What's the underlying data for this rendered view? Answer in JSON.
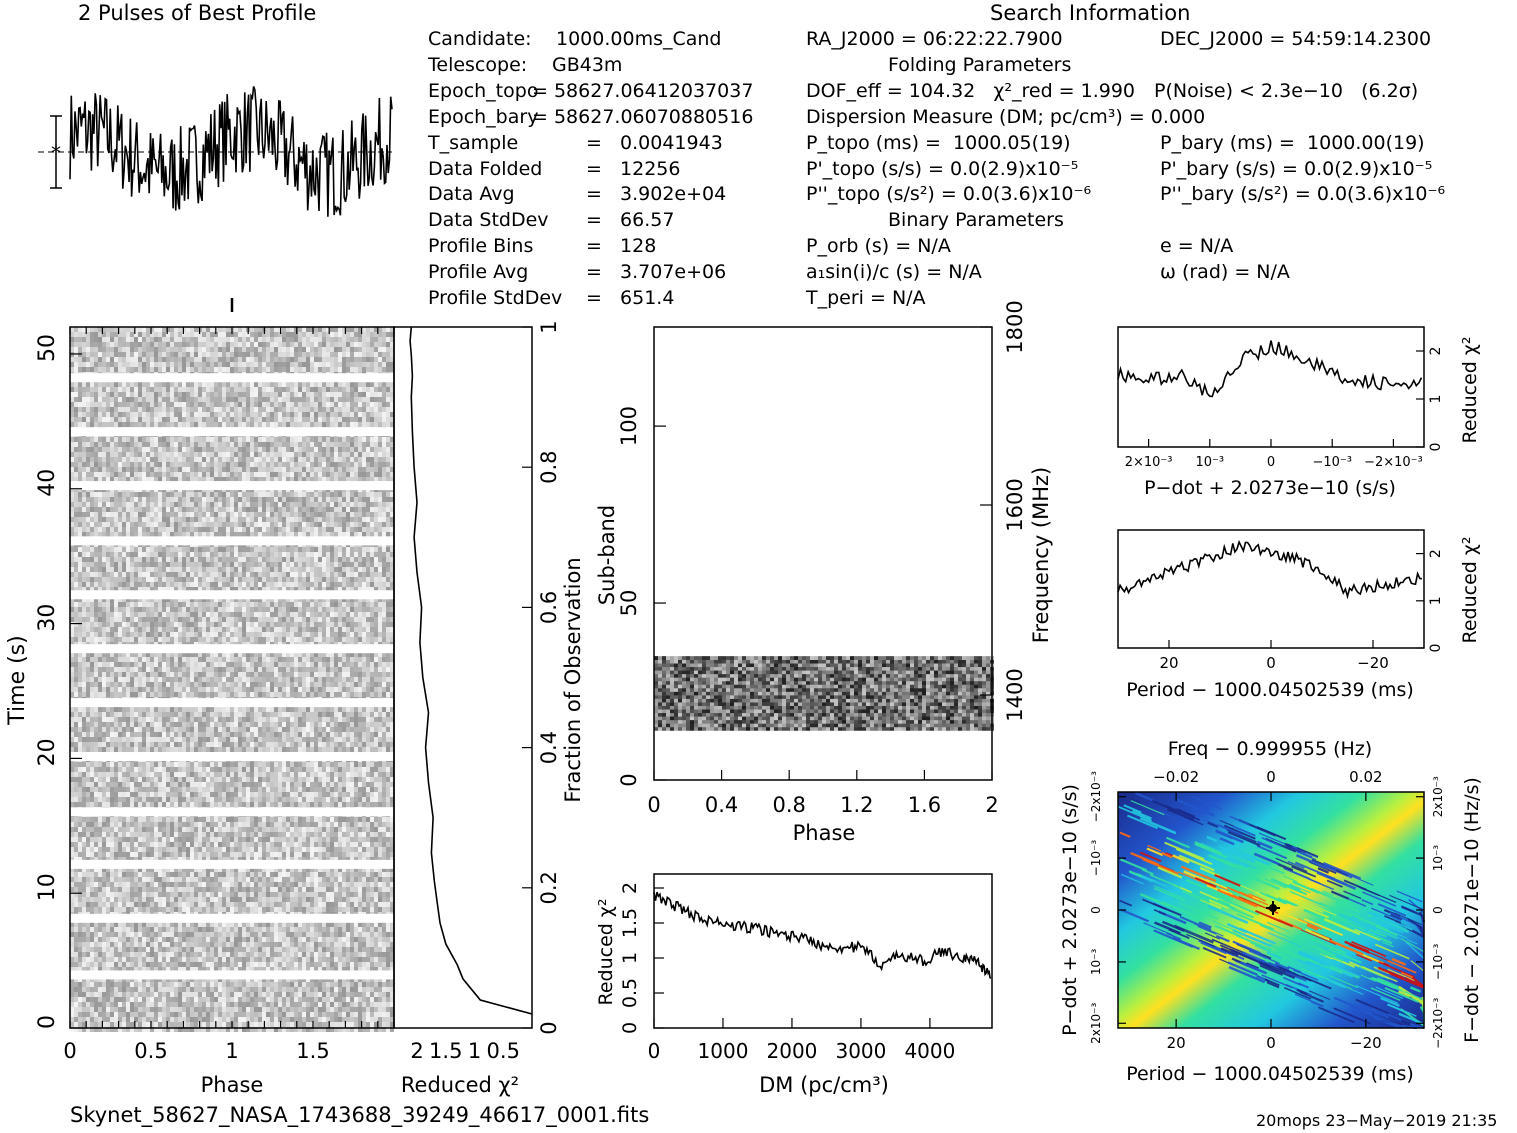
{
  "header": {
    "profile_title": "2 Pulses of Best Profile",
    "search_title": "Search Information",
    "folding_title": "Folding Parameters",
    "binary_title": "Binary Parameters"
  },
  "info_left": [
    {
      "label": "Candidate:",
      "value": "1000.00ms_Cand"
    },
    {
      "label": "Telescope:",
      "value": "GB43m"
    },
    {
      "label": "Epoch_topo",
      "value": "= 58627.06412037037"
    },
    {
      "label": "Epoch_bary",
      "value": "= 58627.06070880516"
    },
    {
      "label": "T_sample",
      "value": "=   0.0041943"
    },
    {
      "label": "Data Folded",
      "value": "=   12256"
    },
    {
      "label": "Data Avg",
      "value": "=   3.902e+04"
    },
    {
      "label": "Data StdDev",
      "value": "=   66.57"
    },
    {
      "label": "Profile Bins",
      "value": "=   128"
    },
    {
      "label": "Profile Avg",
      "value": "=   3.707e+06"
    },
    {
      "label": "Profile StdDev",
      "value": "=   651.4"
    }
  ],
  "search_info": {
    "ra": "RA_J2000 = 06:22:22.7900",
    "dec": "DEC_J2000 = 54:59:14.2300",
    "dof": "DOF_eff = 104.32   χ²_red = 1.990",
    "pnoise": "P(Noise) < 2.3e−10   (6.2σ)",
    "dm": "Dispersion Measure (DM; pc/cm³) = 0.000",
    "ptopo": "P_topo (ms) =  1000.05(19)",
    "pbary": "P_bary (ms) =  1000.00(19)",
    "pdtopo": "P'_topo (s/s) = 0.0(2.9)x10⁻⁵",
    "pdbary": "P'_bary (s/s) = 0.0(2.9)x10⁻⁵",
    "pddtopo": "P''_topo (s/s²) = 0.0(3.6)x10⁻⁶",
    "pddbary": "P''_bary (s/s²) = 0.0(3.6)x10⁻⁶",
    "porb": "P_orb (s) = N/A",
    "ecc": "e = N/A",
    "a1": "a₁sin(i)/c (s) = N/A",
    "omega": "ω (rad) = N/A",
    "tperi": "T_peri = N/A"
  },
  "footer": {
    "filename": "Skynet_58627_NASA_1743688_39249_46617_0001.fits",
    "stamp": "20mops 23−May−2019 21:35"
  },
  "chart_data": [
    {
      "name": "Time vs Phase",
      "type": "heatmap",
      "xlabel": "Phase",
      "ylabel": "Time (s)",
      "xlim": [
        0,
        2
      ],
      "ylim": [
        0,
        52
      ],
      "xticks": [
        "0",
        "0.5",
        "1",
        "1.5"
      ],
      "yticks": [
        "0",
        "10",
        "20",
        "30",
        "40",
        "50"
      ],
      "gap_times_s": [
        3.9,
        8.1,
        12.1,
        16.0,
        20.1,
        24.1,
        28.1,
        32.1,
        36.1,
        40.2,
        44.2,
        48.2
      ]
    },
    {
      "name": "Reduced chi2 vs Fraction of Observation",
      "type": "line",
      "xlabel": "Reduced χ²",
      "ylabel": "Fraction of Observation",
      "xlim": [
        2.4,
        0
      ],
      "ylim": [
        0,
        1
      ],
      "xticks": [
        "2",
        "1.5",
        "1",
        "0.5"
      ],
      "yticks": [
        "0",
        "0.2",
        "0.4",
        "0.6",
        "0.8",
        "1"
      ],
      "x": [
        0.0,
        0.9,
        1.2,
        1.3,
        1.5,
        1.6,
        1.65,
        1.7,
        1.75,
        1.72,
        1.8,
        1.85,
        1.8,
        1.9,
        1.95,
        1.92,
        2.0,
        2.05,
        2.0,
        2.05,
        2.08,
        2.1,
        2.08,
        2.1,
        2.12,
        2.1
      ],
      "y": [
        0.02,
        0.04,
        0.07,
        0.09,
        0.12,
        0.15,
        0.18,
        0.21,
        0.25,
        0.3,
        0.35,
        0.4,
        0.45,
        0.5,
        0.55,
        0.6,
        0.65,
        0.7,
        0.75,
        0.8,
        0.85,
        0.9,
        0.93,
        0.96,
        0.98,
        1.0
      ]
    },
    {
      "name": "Sub-band vs Phase",
      "type": "heatmap",
      "xlabel": "Phase",
      "ylabel": "Sub-band",
      "y2label": "Frequency (MHz)",
      "xlim": [
        0,
        2
      ],
      "ylim": [
        0,
        128
      ],
      "xticks": [
        "0",
        "0.4",
        "0.8",
        "1.2",
        "1.6",
        "2"
      ],
      "yticks": [
        "0",
        "50",
        "100"
      ],
      "y2ticks": [
        "1400",
        "1600",
        "1800"
      ],
      "active_subbands": [
        14,
        35
      ]
    },
    {
      "name": "DM curve",
      "type": "line",
      "xlabel": "DM (pc/cm³)",
      "ylabel": "Reduced χ²",
      "xlim": [
        0,
        4900
      ],
      "ylim": [
        0,
        2.2
      ],
      "xticks": [
        "0",
        "1000",
        "2000",
        "3000",
        "4000"
      ],
      "yticks": [
        "0",
        "0.5",
        "1",
        "1.5",
        "2"
      ],
      "x": [
        0,
        300,
        600,
        900,
        1200,
        1500,
        1800,
        2100,
        2400,
        2700,
        3000,
        3300,
        3600,
        3900,
        4200,
        4500,
        4700,
        4900
      ],
      "y": [
        1.9,
        1.75,
        1.6,
        1.5,
        1.45,
        1.42,
        1.35,
        1.3,
        1.2,
        1.15,
        1.15,
        0.9,
        1.05,
        0.95,
        1.1,
        1.0,
        0.95,
        0.7
      ]
    },
    {
      "name": "P-dot curve",
      "type": "line",
      "xlabel": "P−dot + 2.0273e−10 (s/s)",
      "ylabel": "Reduced χ²",
      "ylim": [
        0,
        2.5
      ],
      "xticks": [
        "2×10⁻³",
        "10⁻³",
        "0",
        "−10⁻³",
        "−2×10⁻³"
      ],
      "yticks": [
        "0",
        "1",
        "2"
      ],
      "x": [
        0.0025,
        0.002,
        0.0015,
        0.001,
        0.0005,
        0.0,
        -0.0005,
        -0.001,
        -0.0015,
        -0.002,
        -0.0025
      ],
      "y": [
        1.5,
        1.4,
        1.5,
        1.1,
        1.8,
        2.1,
        1.9,
        1.5,
        1.4,
        1.3,
        1.3
      ]
    },
    {
      "name": "Period curve",
      "type": "line",
      "xlabel": "Period − 1000.04502539 (ms)",
      "ylabel": "Reduced χ²",
      "ylim": [
        0,
        2.5
      ],
      "xticks": [
        "20",
        "0",
        "−20"
      ],
      "yticks": [
        "0",
        "1",
        "2"
      ],
      "x": [
        30,
        25,
        20,
        15,
        10,
        5,
        0,
        -5,
        -10,
        -15,
        -20,
        -25,
        -30
      ],
      "y": [
        1.2,
        1.4,
        1.6,
        1.8,
        2.0,
        2.2,
        2.0,
        1.9,
        1.6,
        1.2,
        1.3,
        1.4,
        1.5
      ]
    },
    {
      "name": "P-Pdot plane",
      "type": "heatmap",
      "title": "Freq − 0.999955 (Hz)",
      "xlabel": "Period − 1000.04502539 (ms)",
      "ylabel": "P−dot + 2.0273e−10 (s/s)",
      "y2label": "F−dot − 2.0271e−10 (Hz/s)",
      "xticks": [
        "20",
        "0",
        "−20"
      ],
      "x2ticks": [
        "−0.02",
        "0",
        "0.02"
      ],
      "yticks": [
        "2x10⁻³",
        "10⁻³",
        "0",
        "−10⁻³",
        "−2x10⁻³"
      ],
      "y2ticks": [
        "−2x10⁻³",
        "−10⁻³",
        "0",
        "10⁻³",
        "2x10⁻³"
      ],
      "best_marker": [
        0,
        0
      ],
      "colors": [
        "#1a2a8a",
        "#2255cc",
        "#22c8e0",
        "#33e0a0",
        "#b8f040",
        "#ffe020",
        "#ff6a10",
        "#d01010"
      ]
    }
  ]
}
